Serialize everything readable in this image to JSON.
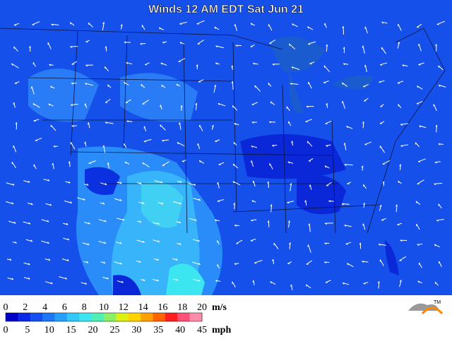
{
  "title": "Winds 12 AM EDT Sat Jun 21",
  "legend": {
    "colors": [
      "#0000c8",
      "#0a28e6",
      "#1450f0",
      "#1e78f5",
      "#28a0fa",
      "#32c8fa",
      "#3ce6f0",
      "#50f0b4",
      "#8cf064",
      "#dcf014",
      "#ffd200",
      "#ffa000",
      "#ff6400",
      "#ff1e1e",
      "#ff5078",
      "#ff8caa"
    ],
    "ms": {
      "labels": [
        0,
        2,
        4,
        6,
        8,
        10,
        12,
        14,
        16,
        18,
        20
      ],
      "unit": "m/s"
    },
    "mph": {
      "labels": [
        0,
        5,
        10,
        15,
        20,
        25,
        30,
        35,
        40,
        45
      ],
      "unit": "mph"
    }
  },
  "logo": "TM"
}
